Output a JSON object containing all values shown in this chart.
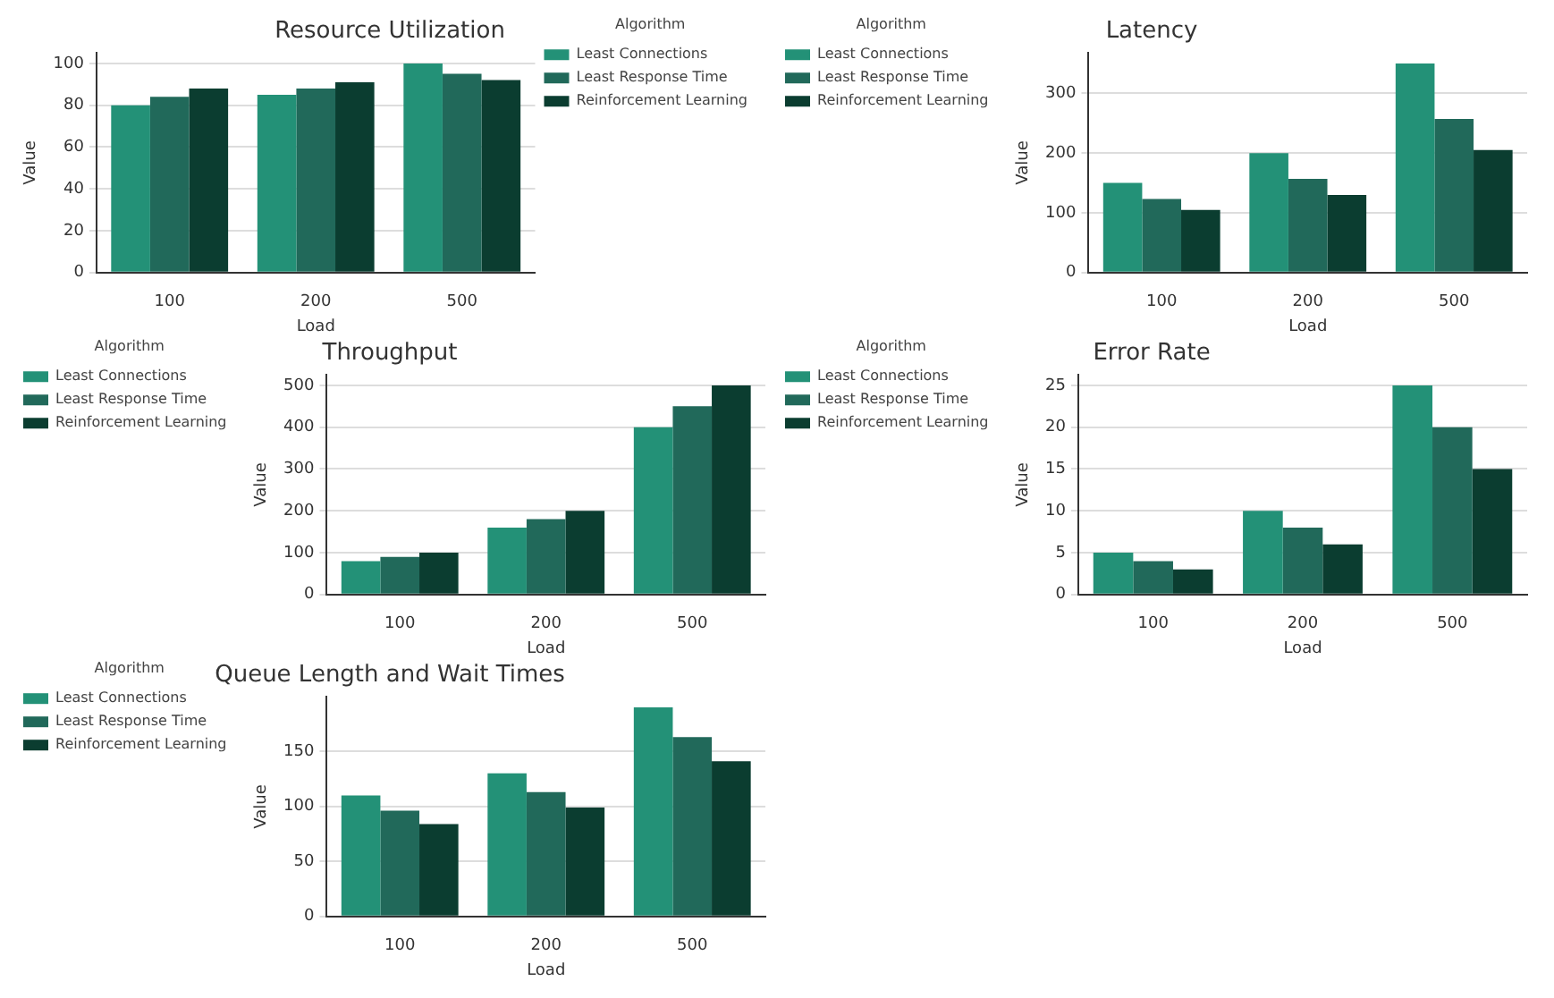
{
  "chart_data": [
    {
      "type": "bar",
      "title": "Resource Utilization",
      "xlabel": "Load",
      "ylabel": "Value",
      "categories": [
        "100",
        "200",
        "500"
      ],
      "legend": "top right",
      "legend_title": "Algorithm",
      "grid": "y",
      "ylim": [
        0,
        105
      ],
      "yticks": [
        0,
        20,
        40,
        60,
        80,
        100
      ],
      "series": [
        {
          "name": "Least Connections",
          "color": "#239177",
          "values": [
            80,
            85,
            100
          ]
        },
        {
          "name": "Least Response Time",
          "color": "#21695a",
          "values": [
            84,
            88,
            95
          ]
        },
        {
          "name": "Reinforcement Learning",
          "color": "#0b3d30",
          "values": [
            88,
            91,
            92
          ]
        }
      ]
    },
    {
      "type": "bar",
      "title": "Latency",
      "xlabel": "Load",
      "ylabel": "Value",
      "categories": [
        "100",
        "200",
        "500"
      ],
      "legend": "top left",
      "legend_title": "Algorithm",
      "grid": "y",
      "ylim": [
        0,
        367.5
      ],
      "yticks": [
        0,
        100,
        200,
        300
      ],
      "series": [
        {
          "name": "Least Connections",
          "color": "#239177",
          "values": [
            150,
            200,
            350
          ]
        },
        {
          "name": "Least Response Time",
          "color": "#21695a",
          "values": [
            123,
            157,
            257
          ]
        },
        {
          "name": "Reinforcement Learning",
          "color": "#0b3d30",
          "values": [
            105,
            130,
            205
          ]
        }
      ]
    },
    {
      "type": "bar",
      "title": "Throughput",
      "xlabel": "Load",
      "ylabel": "Value",
      "categories": [
        "100",
        "200",
        "500"
      ],
      "legend": "top left",
      "legend_title": "Algorithm",
      "grid": "y",
      "ylim": [
        0,
        525
      ],
      "yticks": [
        0,
        100,
        200,
        300,
        400,
        500
      ],
      "series": [
        {
          "name": "Least Connections",
          "color": "#239177",
          "values": [
            80,
            160,
            400
          ]
        },
        {
          "name": "Least Response Time",
          "color": "#21695a",
          "values": [
            90,
            180,
            450
          ]
        },
        {
          "name": "Reinforcement Learning",
          "color": "#0b3d30",
          "values": [
            100,
            200,
            500
          ]
        }
      ]
    },
    {
      "type": "bar",
      "title": "Error Rate",
      "xlabel": "Load",
      "ylabel": "Value",
      "categories": [
        "100",
        "200",
        "500"
      ],
      "legend": "top left",
      "legend_title": "Algorithm",
      "grid": "y",
      "ylim": [
        0,
        26.25
      ],
      "yticks": [
        0,
        5,
        10,
        15,
        20,
        25
      ],
      "series": [
        {
          "name": "Least Connections",
          "color": "#239177",
          "values": [
            5,
            10,
            25
          ]
        },
        {
          "name": "Least Response Time",
          "color": "#21695a",
          "values": [
            4,
            8,
            20
          ]
        },
        {
          "name": "Reinforcement Learning",
          "color": "#0b3d30",
          "values": [
            3,
            6,
            15
          ]
        }
      ]
    },
    {
      "type": "bar",
      "title": "Queue Length and Wait Times",
      "xlabel": "Load",
      "ylabel": "Value",
      "categories": [
        "100",
        "200",
        "500"
      ],
      "legend": "top left",
      "legend_title": "Algorithm",
      "grid": "y",
      "ylim": [
        0,
        199.5
      ],
      "yticks": [
        0,
        50,
        100,
        150
      ],
      "series": [
        {
          "name": "Least Connections",
          "color": "#239177",
          "values": [
            110,
            130,
            190
          ]
        },
        {
          "name": "Least Response Time",
          "color": "#21695a",
          "values": [
            96,
            113,
            163
          ]
        },
        {
          "name": "Reinforcement Learning",
          "color": "#0b3d30",
          "values": [
            84,
            99,
            141
          ]
        }
      ]
    }
  ]
}
